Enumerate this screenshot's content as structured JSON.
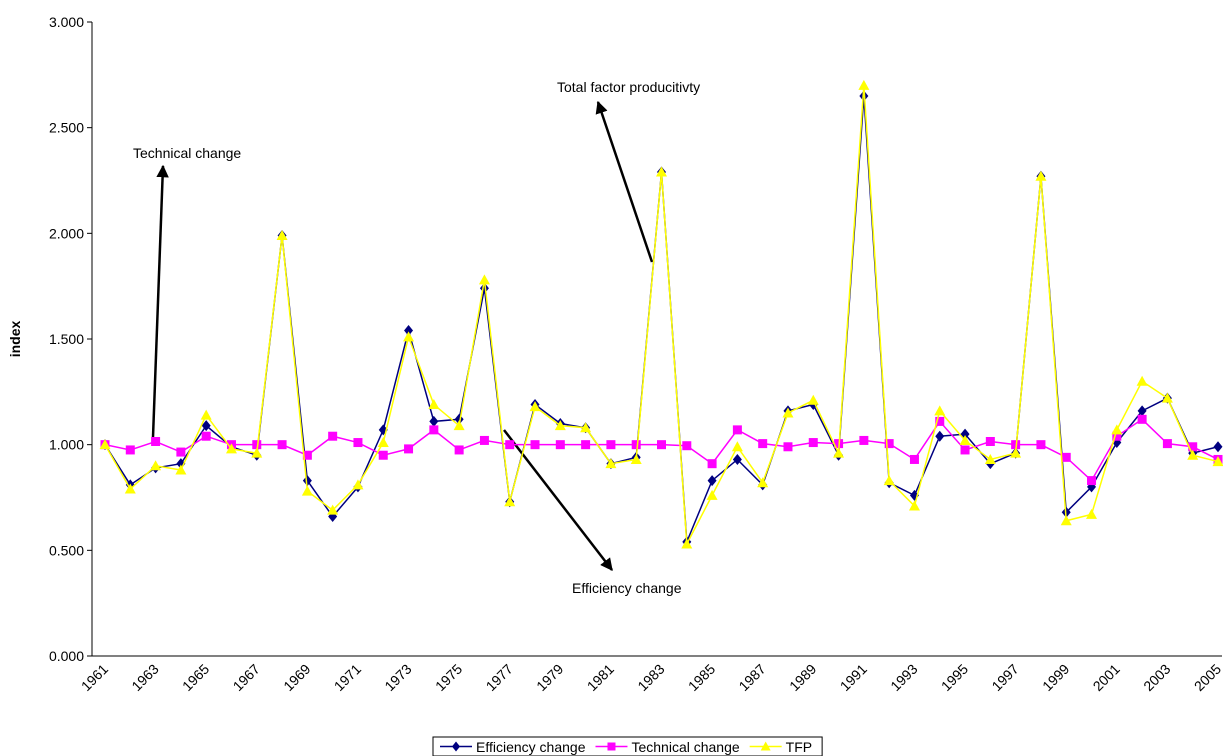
{
  "chart_data": {
    "type": "line",
    "y_label": "index",
    "categories": [
      "1961",
      null,
      "1963",
      null,
      "1965",
      null,
      "1967",
      null,
      "1969",
      null,
      "1971",
      null,
      "1973",
      null,
      "1975",
      null,
      "1977",
      null,
      "1979",
      null,
      "1981",
      null,
      "1983",
      null,
      "1985",
      null,
      "1987",
      null,
      "1989",
      null,
      "1991",
      null,
      "1993",
      null,
      "1995",
      null,
      "1997",
      null,
      "1999",
      null,
      "2001",
      null,
      "2003",
      null,
      "2005"
    ],
    "ylim": [
      0,
      3
    ],
    "yticks": [
      {
        "value": 0,
        "label": "0.000"
      },
      {
        "value": 0.5,
        "label": "0.500"
      },
      {
        "value": 1,
        "label": "1.000"
      },
      {
        "value": 1.5,
        "label": "1.500"
      },
      {
        "value": 2,
        "label": "2.000"
      },
      {
        "value": 2.5,
        "label": "2.500"
      },
      {
        "value": 3,
        "label": "3.000"
      }
    ],
    "grid": false,
    "legend": "bottom",
    "series": [
      {
        "name": "Efficiency change",
        "color": "#000080",
        "marker": "diamond",
        "values": [
          1.0,
          0.81,
          0.89,
          0.91,
          1.09,
          0.99,
          0.95,
          1.99,
          0.83,
          0.66,
          0.8,
          1.07,
          1.54,
          1.11,
          1.12,
          1.74,
          0.73,
          1.19,
          1.1,
          1.08,
          0.91,
          0.94,
          2.29,
          0.54,
          0.83,
          0.93,
          0.81,
          1.16,
          1.19,
          0.95,
          2.65,
          0.82,
          0.76,
          1.04,
          1.05,
          0.91,
          0.96,
          2.27,
          0.68,
          0.8,
          1.01,
          1.16,
          1.22,
          0.96,
          0.99
        ]
      },
      {
        "name": "Technical change",
        "color": "#ff00ff",
        "marker": "square",
        "values": [
          1.0,
          0.975,
          1.015,
          0.965,
          1.04,
          1.0,
          1.0,
          1.0,
          0.95,
          1.04,
          1.01,
          0.95,
          0.98,
          1.07,
          0.975,
          1.02,
          1.0,
          1.0,
          1.0,
          1.0,
          1.0,
          1.0,
          1.0,
          0.995,
          0.91,
          1.07,
          1.005,
          0.99,
          1.01,
          1.005,
          1.02,
          1.005,
          0.93,
          1.11,
          0.975,
          1.015,
          1.0,
          1.0,
          0.94,
          0.83,
          1.04,
          1.12,
          1.005,
          0.99,
          0.93
        ]
      },
      {
        "name": "TFP",
        "color": "#ffff00",
        "marker": "triangle",
        "values": [
          1.0,
          0.79,
          0.9,
          0.88,
          1.14,
          0.98,
          0.96,
          1.99,
          0.78,
          0.69,
          0.81,
          1.01,
          1.51,
          1.19,
          1.09,
          1.78,
          0.73,
          1.18,
          1.09,
          1.08,
          0.91,
          0.93,
          2.29,
          0.53,
          0.76,
          0.99,
          0.82,
          1.15,
          1.21,
          0.96,
          2.7,
          0.83,
          0.71,
          1.16,
          1.02,
          0.93,
          0.96,
          2.27,
          0.64,
          0.67,
          1.07,
          1.3,
          1.22,
          0.95,
          0.92
        ]
      }
    ],
    "annotations": [
      "Technical change",
      "Total factor producitivty",
      "Efficiency change"
    ]
  }
}
